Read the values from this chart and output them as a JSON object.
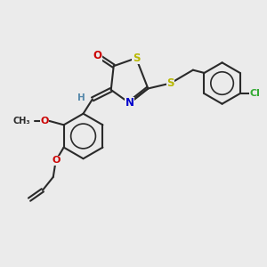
{
  "bg_color": "#ebebeb",
  "bond_color": "#2a2a2a",
  "bond_width": 1.5,
  "atom_colors": {
    "O": "#cc0000",
    "S": "#b8b800",
    "N": "#0000cc",
    "Cl": "#33aa33",
    "H": "#5588aa",
    "C": "#2a2a2a"
  },
  "font_size": 8.5
}
